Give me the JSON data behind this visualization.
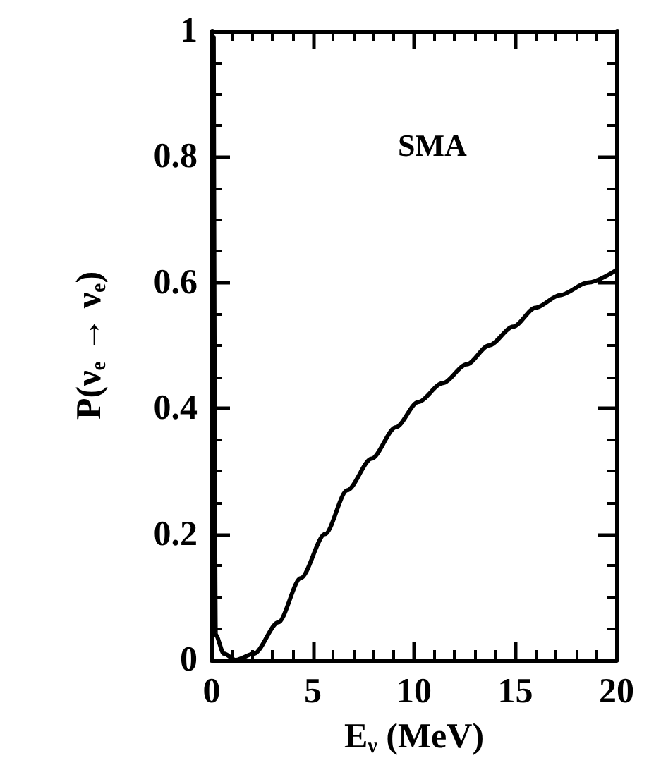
{
  "chart_data": {
    "type": "line",
    "xlabel": "E$_{ν}$ (MeV)",
    "ylabel": "P(ν$_{e}$ → ν$_{e}$)",
    "annotations": [
      "SMA"
    ],
    "series": [
      {
        "color": "#000000",
        "x": [
          0.1,
          0.2,
          0.6,
          1.2,
          2.1,
          3.3,
          4.4,
          5.6,
          6.7,
          7.9,
          9.1,
          10.2,
          11.4,
          12.6,
          13.7,
          14.9,
          16.0,
          17.2,
          18.6,
          20.0
        ],
        "values": [
          0.99,
          0.04,
          0.01,
          0,
          0.01,
          0.06,
          0.13,
          0.2,
          0.27,
          0.32,
          0.37,
          0.41,
          0.44,
          0.47,
          0.5,
          0.53,
          0.56,
          0.58,
          0.6,
          0.62
        ]
      }
    ],
    "xlim": [
      0,
      20
    ],
    "xticks": [
      0,
      5,
      10,
      15,
      20
    ],
    "ylim": [
      0,
      1
    ],
    "yticks": [
      0,
      0.2,
      0.4,
      0.6,
      0.8,
      1
    ],
    "line_style": "solid"
  }
}
